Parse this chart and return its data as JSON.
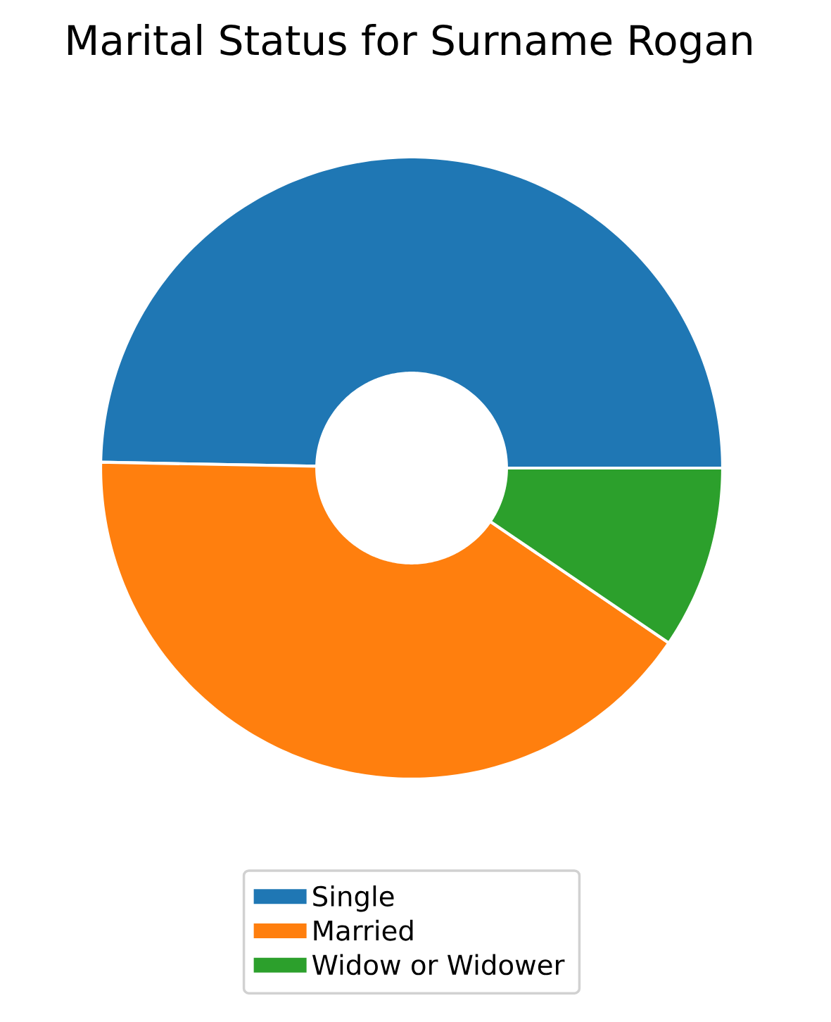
{
  "chart_data": {
    "type": "donut",
    "title": "Marital Status for Surname Rogan",
    "categories": [
      "Single",
      "Married",
      "Widow or Widower"
    ],
    "values": [
      49.7,
      40.8,
      9.5
    ],
    "colors": [
      "#1f77b4",
      "#ff7f0e",
      "#2ca02c"
    ],
    "legend": "bottom"
  }
}
